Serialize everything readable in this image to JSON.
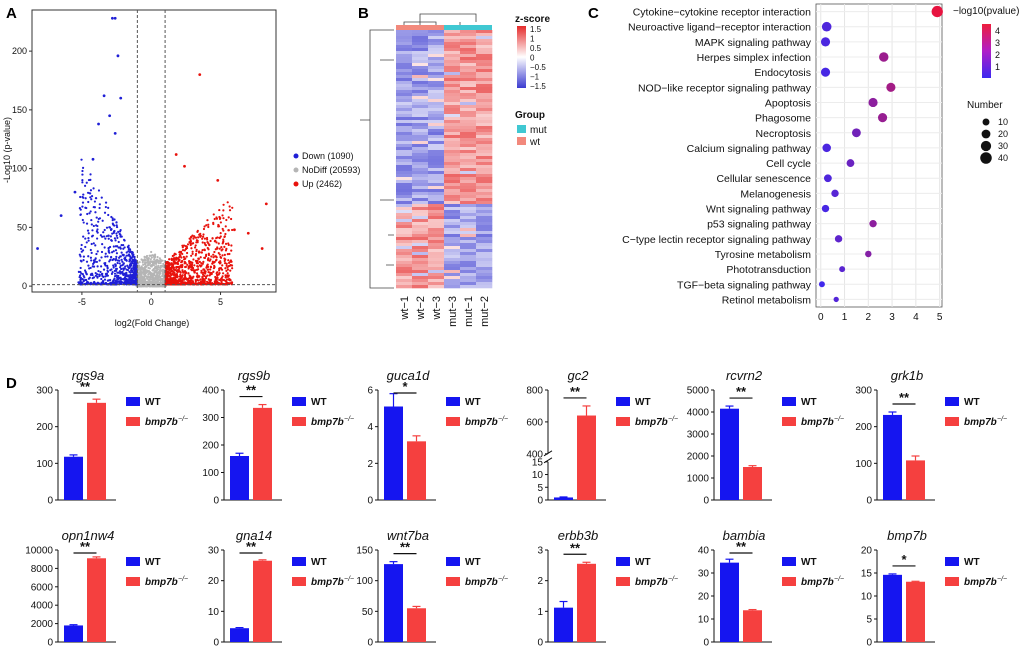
{
  "colors": {
    "down": "#1f1fd6",
    "nodiff": "#b5b5b5",
    "up": "#e8120c",
    "wt_bar": "#1515f0",
    "mut_bar": "#f5403f",
    "mut_group": "#40c8d2",
    "wt_group": "#f2897c",
    "heat_high": "#e52b2b",
    "heat_low": "#3b3bd0"
  },
  "panels": {
    "A": "A",
    "B": "B",
    "C": "C",
    "D": "D"
  },
  "chart_data": [
    {
      "id": "volcano",
      "type": "scatter",
      "title": "",
      "xlabel": "log2(Fold Change)",
      "ylabel": "-Log10 (p-value)",
      "xlim": [
        -8.6,
        9
      ],
      "ylim": [
        -5,
        235
      ],
      "xticks": [
        -5,
        0,
        5
      ],
      "yticks": [
        0,
        50,
        100,
        150,
        200
      ],
      "thresholds": {
        "x": [
          -1,
          1
        ],
        "y": 1.3
      },
      "legend": [
        {
          "name": "Down (1090)",
          "group": "down"
        },
        {
          "name": "NoDiff (20593)",
          "group": "nodiff"
        },
        {
          "name": "Up (2462)",
          "group": "up"
        }
      ],
      "highlight_points": [
        {
          "x": -2.8,
          "y": 228,
          "group": "down"
        },
        {
          "x": -2.6,
          "y": 228,
          "group": "down"
        },
        {
          "x": -2.4,
          "y": 196,
          "group": "down"
        },
        {
          "x": -3.4,
          "y": 162,
          "group": "down"
        },
        {
          "x": -2.2,
          "y": 160,
          "group": "down"
        },
        {
          "x": -3.0,
          "y": 145,
          "group": "down"
        },
        {
          "x": -3.8,
          "y": 138,
          "group": "down"
        },
        {
          "x": -2.6,
          "y": 130,
          "group": "down"
        },
        {
          "x": -4.2,
          "y": 108,
          "group": "down"
        },
        {
          "x": -5.5,
          "y": 80,
          "group": "down"
        },
        {
          "x": -8.2,
          "y": 32,
          "group": "down"
        },
        {
          "x": -6.5,
          "y": 60,
          "group": "down"
        },
        {
          "x": 3.5,
          "y": 180,
          "group": "up"
        },
        {
          "x": 1.8,
          "y": 112,
          "group": "up"
        },
        {
          "x": 2.4,
          "y": 102,
          "group": "up"
        },
        {
          "x": 4.8,
          "y": 90,
          "group": "up"
        },
        {
          "x": 8.3,
          "y": 70,
          "group": "up"
        },
        {
          "x": 6.0,
          "y": 48,
          "group": "up"
        },
        {
          "x": 7.0,
          "y": 45,
          "group": "up"
        },
        {
          "x": 8.0,
          "y": 32,
          "group": "up"
        }
      ]
    },
    {
      "id": "heatmap",
      "type": "heatmap",
      "title": "z-score",
      "colorbar_ticks": [
        "1.5",
        "1",
        "0.5",
        "0",
        "−0.5",
        "−1",
        "−1.5"
      ],
      "group_title": "Group",
      "groups": [
        {
          "name": "mut",
          "color_key": "mut_group"
        },
        {
          "name": "wt",
          "color_key": "wt_group"
        }
      ],
      "columns": [
        {
          "label": "wt−1",
          "group": "wt"
        },
        {
          "label": "wt−2",
          "group": "wt"
        },
        {
          "label": "wt−3",
          "group": "wt"
        },
        {
          "label": "mut−3",
          "group": "mut"
        },
        {
          "label": "mut−1",
          "group": "mut"
        },
        {
          "label": "mut−2",
          "group": "mut"
        }
      ],
      "clusters": [
        {
          "fraction": 0.68,
          "wt": -1,
          "mut": 1
        },
        {
          "fraction": 0.32,
          "wt": 1,
          "mut": -1
        }
      ]
    },
    {
      "id": "kegg",
      "type": "scatter",
      "title": "",
      "xlim": [
        -0.2,
        5.1
      ],
      "xticks": [
        0,
        1,
        2,
        3,
        4,
        5
      ],
      "colorbar_title": "−log10(pvalue)",
      "colorbar_ticks": [
        "4",
        "3",
        "2",
        "1"
      ],
      "size_title": "Number",
      "size_legend": [
        10,
        20,
        30,
        40
      ],
      "terms": [
        {
          "name": "Cytokine−cytokine receptor interaction",
          "x": 4.9,
          "count": 38,
          "logp": 4.8
        },
        {
          "name": "Neuroactive ligand−receptor interaction",
          "x": 0.25,
          "count": 25,
          "logp": 0.8
        },
        {
          "name": "MAPK signaling pathway",
          "x": 0.2,
          "count": 22,
          "logp": 0.7
        },
        {
          "name": "Herpes simplex infection",
          "x": 2.65,
          "count": 24,
          "logp": 2.8
        },
        {
          "name": "Endocytosis",
          "x": 0.2,
          "count": 22,
          "logp": 0.6
        },
        {
          "name": "NOD−like receptor signaling pathway",
          "x": 2.95,
          "count": 22,
          "logp": 3.0
        },
        {
          "name": "Apoptosis",
          "x": 2.2,
          "count": 22,
          "logp": 2.4
        },
        {
          "name": "Phagosome",
          "x": 2.6,
          "count": 22,
          "logp": 2.7
        },
        {
          "name": "Necroptosis",
          "x": 1.5,
          "count": 20,
          "logp": 1.7
        },
        {
          "name": "Calcium signaling pathway",
          "x": 0.25,
          "count": 18,
          "logp": 0.7
        },
        {
          "name": "Cell cycle",
          "x": 1.25,
          "count": 14,
          "logp": 1.5
        },
        {
          "name": "Cellular senescence",
          "x": 0.3,
          "count": 14,
          "logp": 0.8
        },
        {
          "name": "Melanogenesis",
          "x": 0.6,
          "count": 12,
          "logp": 1.0
        },
        {
          "name": "Wnt signaling pathway",
          "x": 0.2,
          "count": 12,
          "logp": 0.6
        },
        {
          "name": "p53 signaling pathway",
          "x": 2.2,
          "count": 12,
          "logp": 2.4
        },
        {
          "name": "C−type lectin receptor signaling pathway",
          "x": 0.75,
          "count": 12,
          "logp": 1.2
        },
        {
          "name": "Tyrosine metabolism",
          "x": 2.0,
          "count": 8,
          "logp": 2.2
        },
        {
          "name": "Phototransduction",
          "x": 0.9,
          "count": 6,
          "logp": 1.1
        },
        {
          "name": "TGF−beta signaling pathway",
          "x": 0.05,
          "count": 6,
          "logp": 0.4
        },
        {
          "name": "Retinol metabolism",
          "x": 0.65,
          "count": 4,
          "logp": 0.9
        }
      ]
    },
    {
      "id": "qpcr",
      "type": "bar",
      "series_names": [
        "WT",
        "bmp7b-/-"
      ],
      "legend_wt": "WT",
      "legend_mut": "bmp7b",
      "legend_mut_sup": "−/−",
      "genes": [
        {
          "name": "rgs9a",
          "wt": 118,
          "mut": 265,
          "wt_err": 5,
          "mut_err": 10,
          "ylim": [
            0,
            300
          ],
          "yticks": [
            0,
            100,
            200,
            300
          ],
          "sig": "**"
        },
        {
          "name": "rgs9b",
          "wt": 160,
          "mut": 335,
          "wt_err": 10,
          "mut_err": 12,
          "ylim": [
            0,
            400
          ],
          "yticks": [
            0,
            100,
            200,
            300,
            400
          ],
          "sig": "**"
        },
        {
          "name": "guca1d",
          "wt": 5.1,
          "mut": 3.2,
          "wt_err": 0.7,
          "mut_err": 0.3,
          "ylim": [
            0,
            6
          ],
          "yticks": [
            0,
            2,
            4,
            6
          ],
          "sig": "*"
        },
        {
          "name": "gc2",
          "wt": 1,
          "mut": 640,
          "wt_err": 0.2,
          "mut_err": 60,
          "ylim": [
            0,
            800
          ],
          "yticks": [
            0,
            5,
            10,
            15,
            400,
            600,
            800
          ],
          "sig": "**",
          "broken": true
        },
        {
          "name": "rcvrn2",
          "wt": 4150,
          "mut": 1500,
          "wt_err": 120,
          "mut_err": 60,
          "ylim": [
            0,
            5000
          ],
          "yticks": [
            0,
            1000,
            2000,
            3000,
            4000,
            5000
          ],
          "sig": "**"
        },
        {
          "name": "grk1b",
          "wt": 232,
          "mut": 108,
          "wt_err": 8,
          "mut_err": 12,
          "ylim": [
            0,
            300
          ],
          "yticks": [
            0,
            100,
            200,
            300
          ],
          "sig": "**"
        },
        {
          "name": "opn1nw4",
          "wt": 1800,
          "mut": 9100,
          "wt_err": 80,
          "mut_err": 150,
          "ylim": [
            0,
            10000
          ],
          "yticks": [
            0,
            2000,
            4000,
            6000,
            8000,
            10000
          ],
          "sig": "**"
        },
        {
          "name": "gna14",
          "wt": 4.5,
          "mut": 26.5,
          "wt_err": 0.2,
          "mut_err": 0.3,
          "ylim": [
            0,
            30
          ],
          "yticks": [
            0,
            10,
            20,
            30
          ],
          "sig": "**"
        },
        {
          "name": "wnt7ba",
          "wt": 127,
          "mut": 55,
          "wt_err": 4,
          "mut_err": 3,
          "ylim": [
            0,
            150
          ],
          "yticks": [
            0,
            50,
            100,
            150
          ],
          "sig": "**"
        },
        {
          "name": "erbb3b",
          "wt": 1.12,
          "mut": 2.55,
          "wt_err": 0.2,
          "mut_err": 0.05,
          "ylim": [
            0,
            3
          ],
          "yticks": [
            0,
            1,
            2,
            3
          ],
          "sig": "**"
        },
        {
          "name": "bambia",
          "wt": 34.5,
          "mut": 13.8,
          "wt_err": 1.5,
          "mut_err": 0.3,
          "ylim": [
            0,
            40
          ],
          "yticks": [
            0,
            10,
            20,
            30,
            40
          ],
          "sig": "**"
        },
        {
          "name": "bmp7b",
          "wt": 14.6,
          "mut": 13.1,
          "wt_err": 0.2,
          "mut_err": 0.1,
          "ylim": [
            0,
            20
          ],
          "yticks": [
            0,
            5,
            10,
            15,
            20
          ],
          "sig": "*"
        }
      ]
    }
  ]
}
